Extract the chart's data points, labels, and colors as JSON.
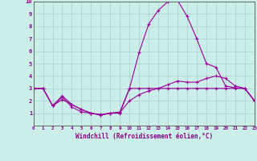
{
  "xlabel": "Windchill (Refroidissement éolien,°C)",
  "background_color": "#cceee8",
  "grid_color": "#aacccc",
  "line_color": "#990099",
  "xlim": [
    0,
    23
  ],
  "ylim": [
    0,
    10
  ],
  "series1_x": [
    0,
    1,
    2,
    3,
    4,
    5,
    6,
    7,
    8,
    9,
    10,
    11,
    12,
    13,
    14,
    15,
    16,
    17,
    18,
    19,
    20,
    21,
    22,
    23
  ],
  "series1_y": [
    3.0,
    3.0,
    1.6,
    2.3,
    1.5,
    1.1,
    1.0,
    0.85,
    1.0,
    1.0,
    3.0,
    3.0,
    3.0,
    3.0,
    3.0,
    3.0,
    3.0,
    3.0,
    3.0,
    3.0,
    3.0,
    3.0,
    3.0,
    2.0
  ],
  "series2_x": [
    0,
    1,
    2,
    3,
    4,
    5,
    6,
    7,
    8,
    9,
    10,
    11,
    12,
    13,
    14,
    15,
    16,
    17,
    18,
    19,
    20,
    21,
    22,
    23
  ],
  "series2_y": [
    3.0,
    3.0,
    1.6,
    2.4,
    1.7,
    1.3,
    1.0,
    0.9,
    1.0,
    1.1,
    3.0,
    5.9,
    8.2,
    9.3,
    10.0,
    10.1,
    8.8,
    7.0,
    5.0,
    4.7,
    3.2,
    3.05,
    3.0,
    2.0
  ],
  "series3_x": [
    0,
    1,
    2,
    3,
    4,
    5,
    6,
    7,
    8,
    9,
    10,
    11,
    12,
    13,
    14,
    15,
    16,
    17,
    18,
    19,
    20,
    21,
    22,
    23
  ],
  "series3_y": [
    3.0,
    3.0,
    1.6,
    2.1,
    1.7,
    1.3,
    1.0,
    0.85,
    1.0,
    1.05,
    2.0,
    2.5,
    2.8,
    3.0,
    3.3,
    3.6,
    3.5,
    3.5,
    3.8,
    4.0,
    3.8,
    3.2,
    3.0,
    2.0
  ],
  "xtick_labels": [
    "0",
    "1",
    "2",
    "3",
    "4",
    "5",
    "6",
    "7",
    "8",
    "9",
    "10",
    "11",
    "12",
    "13",
    "14",
    "15",
    "16",
    "17",
    "18",
    "19",
    "20",
    "21",
    "22",
    "23"
  ],
  "ytick_labels": [
    "",
    "1",
    "2",
    "3",
    "4",
    "5",
    "6",
    "7",
    "8",
    "9",
    "10"
  ]
}
